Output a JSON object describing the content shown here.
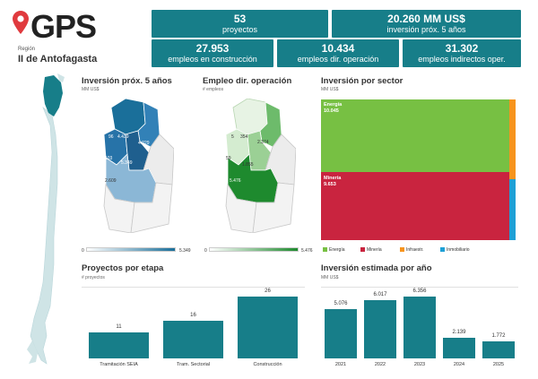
{
  "header": {
    "logo_text": "GPS",
    "region_label": "Región",
    "region_value": "II de Antofagasta"
  },
  "kpis": {
    "projects": {
      "value": "53",
      "label": "proyectos"
    },
    "investment": {
      "value": "20.260 MM US$",
      "label": "inversión próx. 5 años"
    },
    "construction_jobs": {
      "value": "27.953",
      "label": "empleos en construcción"
    },
    "operation_jobs": {
      "value": "10.434",
      "label": "empleos dir. operación"
    },
    "indirect_jobs": {
      "value": "31.302",
      "label": "empleos indirectos oper."
    }
  },
  "investment_map": {
    "title": "Inversión próx. 5 años",
    "unit": "MM US$",
    "labels": [
      "96",
      "4.439",
      "4.029",
      "103",
      "5.349",
      "2.609"
    ],
    "legend_min": "0",
    "legend_max": "5.349",
    "color": "#177e89"
  },
  "employment_map": {
    "title": "Empleo dir. operación",
    "unit": "# empleos",
    "labels": [
      "5",
      "354",
      "2.374",
      "59",
      "1.855",
      "5.476"
    ],
    "legend_min": "0",
    "legend_max": "5.476",
    "color": "#1e8a2e"
  },
  "sector": {
    "title": "Inversión por sector",
    "unit": "MM US$",
    "blocks": [
      {
        "name": "Energía",
        "value": "10.045",
        "color": "#77c043"
      },
      {
        "name": "Minería",
        "value": "9.653",
        "color": "#c9243f"
      }
    ],
    "legend": [
      {
        "name": "Energía",
        "color": "#77c043"
      },
      {
        "name": "Minería",
        "color": "#c9243f"
      },
      {
        "name": "Infraestr.",
        "color": "#f7941d"
      },
      {
        "name": "Inmobiliario",
        "color": "#1ea0d6"
      }
    ]
  },
  "chart_data": [
    {
      "type": "bar",
      "title": "Proyectos por etapa",
      "ylabel": "# proyectos",
      "categories": [
        "Tramitación SEIA",
        "Tram. Sectorial",
        "Construcción"
      ],
      "values": [
        11,
        16,
        26
      ],
      "ylim": [
        0,
        26
      ]
    },
    {
      "type": "bar",
      "title": "Inversión estimada por año",
      "ylabel": "MM US$",
      "categories": [
        "2021",
        "2022",
        "2023",
        "2024",
        "2025"
      ],
      "values": [
        5076,
        6017,
        6356,
        2139,
        1772
      ],
      "value_labels": [
        "5.076",
        "6.017",
        "6.356",
        "2.139",
        "1.772"
      ],
      "ylim": [
        0,
        6356
      ]
    }
  ]
}
